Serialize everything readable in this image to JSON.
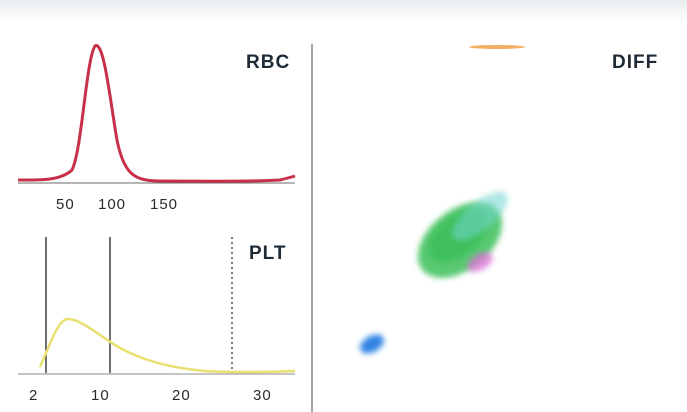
{
  "rbc": {
    "title": "RBC",
    "ticks": [
      "50",
      "100",
      "150"
    ],
    "curve_color": "#c8304a"
  },
  "plt": {
    "title": "PLT",
    "ticks": [
      "2",
      "10",
      "20",
      "30"
    ],
    "curve_color": "#e8e070"
  },
  "diff": {
    "title": "DIFF",
    "cluster_colors": {
      "green": "#3cc05a",
      "cyan": "#6fd5d0",
      "magenta": "#dd6fd8",
      "blue": "#1f78e0",
      "orange": "#f09a3a"
    }
  }
}
